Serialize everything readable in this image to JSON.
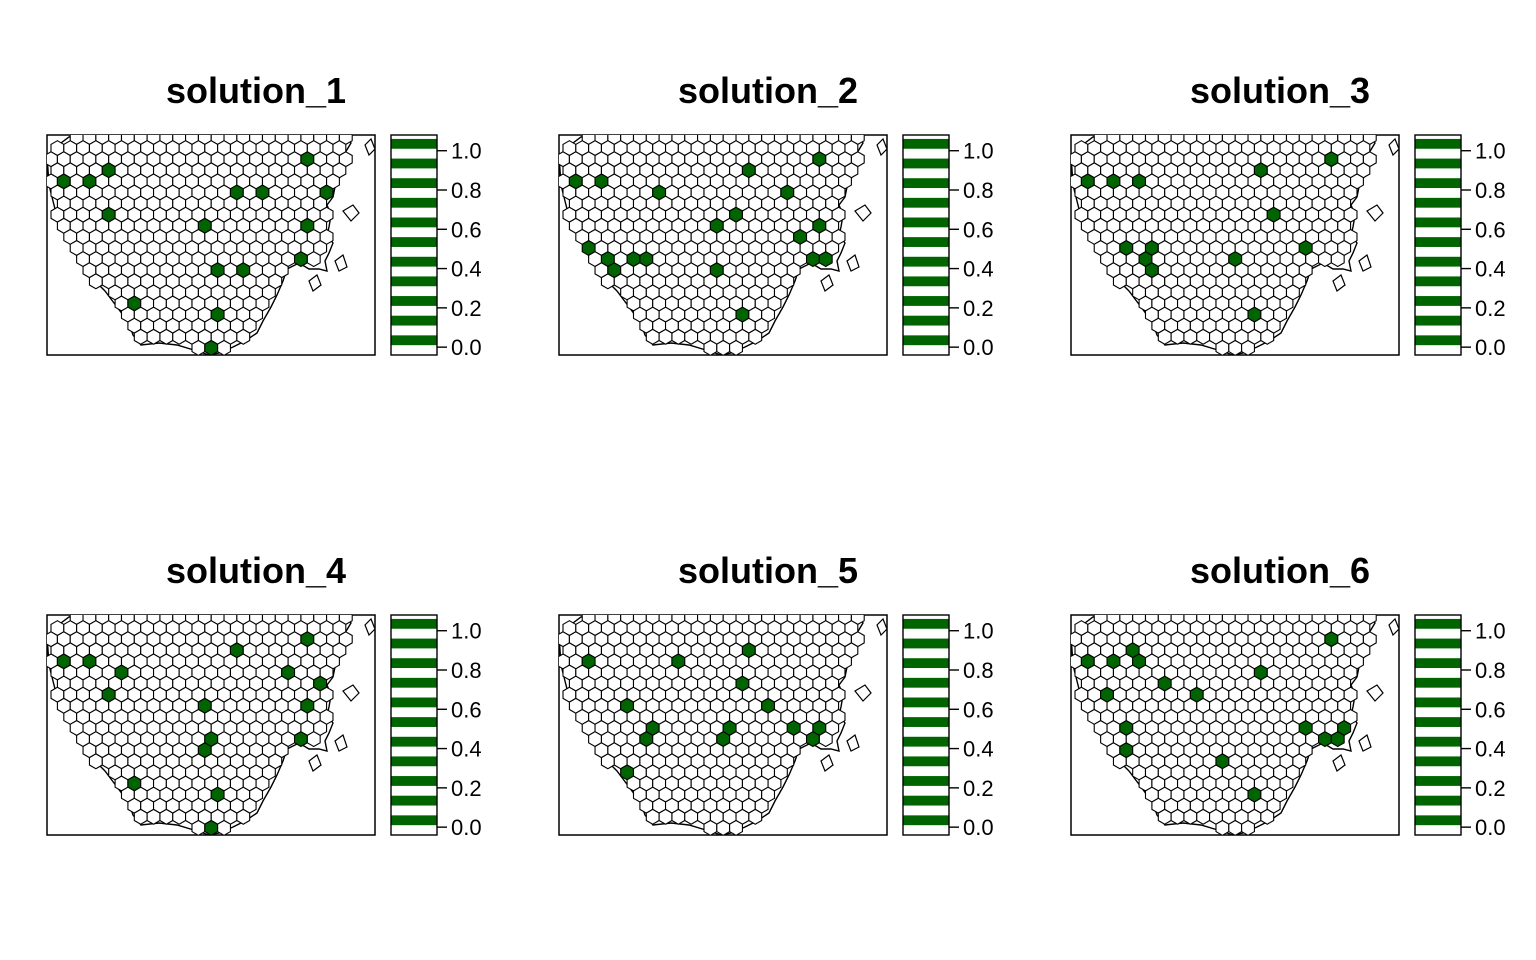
{
  "figure": {
    "background": "#ffffff"
  },
  "colors": {
    "selected": "#006400",
    "unselected": "#ffffff",
    "outline": "#000000"
  },
  "legend_ticks": [
    "0.0",
    "0.2",
    "0.4",
    "0.6",
    "0.8",
    "1.0"
  ],
  "chart_data": [
    {
      "type": "map",
      "title": "solution_1",
      "value_range": [
        0,
        1
      ],
      "legend": {
        "position": "right",
        "style": "color-bar",
        "ticks": [
          0,
          0.2,
          0.4,
          0.6,
          0.8,
          1.0
        ],
        "colors": [
          "#ffffff",
          "#006400"
        ]
      },
      "selected_units": [
        [
          2,
          20
        ],
        [
          2,
          35
        ],
        [
          3,
          4
        ],
        [
          4,
          1
        ],
        [
          4,
          3
        ],
        [
          5,
          14
        ],
        [
          5,
          16
        ],
        [
          5,
          21
        ],
        [
          7,
          4
        ],
        [
          8,
          12
        ],
        [
          8,
          20
        ],
        [
          8,
          24
        ],
        [
          8,
          30
        ],
        [
          8,
          31
        ],
        [
          10,
          26
        ],
        [
          10,
          28
        ],
        [
          11,
          19
        ],
        [
          11,
          30
        ],
        [
          12,
          13
        ],
        [
          12,
          15
        ],
        [
          13,
          34
        ],
        [
          13,
          23
        ],
        [
          14,
          27
        ],
        [
          15,
          6
        ],
        [
          16,
          13
        ],
        [
          17,
          2
        ],
        [
          19,
          12
        ],
        [
          20,
          18
        ],
        [
          22,
          18
        ],
        [
          23,
          19
        ],
        [
          26,
          11
        ],
        [
          27,
          16
        ],
        [
          29,
          16
        ],
        [
          30,
          19
        ],
        [
          28,
          9
        ],
        [
          29,
          20
        ]
      ]
    },
    {
      "type": "map",
      "title": "solution_2",
      "value_range": [
        0,
        1
      ],
      "legend": {
        "position": "right",
        "style": "color-bar",
        "ticks": [
          0,
          0.2,
          0.4,
          0.6,
          0.8,
          1.0
        ],
        "colors": [
          "#ffffff",
          "#006400"
        ]
      },
      "selected_units": [
        [
          2,
          20
        ],
        [
          2,
          34
        ],
        [
          3,
          14
        ],
        [
          3,
          26
        ],
        [
          4,
          1
        ],
        [
          4,
          3
        ],
        [
          5,
          7
        ],
        [
          5,
          17
        ],
        [
          7,
          13
        ],
        [
          8,
          12
        ],
        [
          8,
          20
        ],
        [
          9,
          18
        ],
        [
          10,
          2
        ],
        [
          11,
          3
        ],
        [
          11,
          5
        ],
        [
          11,
          6
        ],
        [
          12,
          4
        ],
        [
          12,
          12
        ],
        [
          11,
          19
        ],
        [
          11,
          20
        ],
        [
          12,
          31
        ],
        [
          12,
          32
        ],
        [
          13,
          22
        ],
        [
          13,
          23
        ],
        [
          15,
          31
        ],
        [
          16,
          14
        ],
        [
          16,
          24
        ],
        [
          26,
          9
        ],
        [
          26,
          15
        ],
        [
          26,
          19
        ],
        [
          27,
          20
        ],
        [
          29,
          16
        ],
        [
          30,
          19
        ],
        [
          31,
          15
        ],
        [
          32,
          11
        ],
        [
          28,
          21
        ]
      ]
    },
    {
      "type": "map",
      "title": "solution_3",
      "value_range": [
        0,
        1
      ],
      "legend": {
        "position": "right",
        "style": "color-bar",
        "ticks": [
          0,
          0.2,
          0.4,
          0.6,
          0.8,
          1.0
        ],
        "colors": [
          "#ffffff",
          "#006400"
        ]
      },
      "selected_units": [
        [
          2,
          20
        ],
        [
          2,
          34
        ],
        [
          2,
          27
        ],
        [
          3,
          14
        ],
        [
          4,
          1
        ],
        [
          4,
          3
        ],
        [
          4,
          5
        ],
        [
          6,
          29
        ],
        [
          7,
          15
        ],
        [
          8,
          28
        ],
        [
          8,
          30
        ],
        [
          9,
          31
        ],
        [
          10,
          4
        ],
        [
          10,
          6
        ],
        [
          10,
          18
        ],
        [
          11,
          5
        ],
        [
          11,
          12
        ],
        [
          12,
          6
        ],
        [
          12,
          19
        ],
        [
          12,
          20
        ],
        [
          12,
          21
        ],
        [
          13,
          28
        ],
        [
          13,
          30
        ],
        [
          13,
          32
        ],
        [
          14,
          31
        ],
        [
          14,
          3
        ],
        [
          16,
          14
        ],
        [
          16,
          20
        ],
        [
          17,
          4
        ],
        [
          22,
          18
        ],
        [
          24,
          19
        ],
        [
          25,
          20
        ],
        [
          26,
          17
        ],
        [
          30,
          11
        ],
        [
          32,
          14
        ],
        [
          31,
          19
        ]
      ]
    },
    {
      "type": "map",
      "title": "solution_4",
      "value_range": [
        0,
        1
      ],
      "legend": {
        "position": "right",
        "style": "color-bar",
        "ticks": [
          0,
          0.2,
          0.4,
          0.6,
          0.8,
          1.0
        ],
        "colors": [
          "#ffffff",
          "#006400"
        ]
      },
      "selected_units": [
        [
          2,
          20
        ],
        [
          2,
          27
        ],
        [
          3,
          29
        ],
        [
          3,
          35
        ],
        [
          3,
          14
        ],
        [
          4,
          1
        ],
        [
          4,
          3
        ],
        [
          5,
          5
        ],
        [
          5,
          18
        ],
        [
          6,
          21
        ],
        [
          7,
          4
        ],
        [
          8,
          12
        ],
        [
          8,
          20
        ],
        [
          8,
          30
        ],
        [
          8,
          31
        ],
        [
          10,
          26
        ],
        [
          10,
          28
        ],
        [
          11,
          12
        ],
        [
          11,
          19
        ],
        [
          12,
          12
        ],
        [
          12,
          21
        ],
        [
          13,
          34
        ],
        [
          13,
          23
        ],
        [
          14,
          27
        ],
        [
          15,
          6
        ],
        [
          16,
          13
        ],
        [
          17,
          2
        ],
        [
          19,
          12
        ],
        [
          20,
          18
        ],
        [
          22,
          18
        ],
        [
          23,
          19
        ],
        [
          26,
          11
        ],
        [
          27,
          16
        ],
        [
          29,
          16
        ],
        [
          30,
          19
        ],
        [
          28,
          9
        ]
      ]
    },
    {
      "type": "map",
      "title": "solution_5",
      "value_range": [
        0,
        1
      ],
      "legend": {
        "position": "right",
        "style": "color-bar",
        "ticks": [
          0,
          0.2,
          0.4,
          0.6,
          0.8,
          1.0
        ],
        "colors": [
          "#ffffff",
          "#006400"
        ]
      },
      "selected_units": [
        [
          2,
          27
        ],
        [
          2,
          35
        ],
        [
          2,
          37
        ],
        [
          3,
          14
        ],
        [
          4,
          2
        ],
        [
          4,
          9
        ],
        [
          5,
          26
        ],
        [
          6,
          14
        ],
        [
          7,
          30
        ],
        [
          8,
          5
        ],
        [
          8,
          16
        ],
        [
          8,
          27
        ],
        [
          9,
          28
        ],
        [
          10,
          7
        ],
        [
          10,
          13
        ],
        [
          10,
          18
        ],
        [
          10,
          20
        ],
        [
          10,
          22
        ],
        [
          11,
          6
        ],
        [
          11,
          12
        ],
        [
          11,
          19
        ],
        [
          11,
          21
        ],
        [
          12,
          23
        ],
        [
          12,
          31
        ],
        [
          14,
          5
        ],
        [
          15,
          29
        ],
        [
          17,
          18
        ],
        [
          19,
          19
        ],
        [
          21,
          20
        ],
        [
          23,
          18
        ],
        [
          25,
          20
        ],
        [
          28,
          10
        ],
        [
          28,
          14
        ],
        [
          28,
          16
        ],
        [
          30,
          19
        ],
        [
          32,
          20
        ]
      ]
    },
    {
      "type": "map",
      "title": "solution_6",
      "value_range": [
        0,
        1
      ],
      "legend": {
        "position": "right",
        "style": "color-bar",
        "ticks": [
          0,
          0.2,
          0.4,
          0.6,
          0.8,
          1.0
        ],
        "colors": [
          "#ffffff",
          "#006400"
        ]
      },
      "selected_units": [
        [
          2,
          20
        ],
        [
          2,
          28
        ],
        [
          2,
          30
        ],
        [
          3,
          4
        ],
        [
          4,
          1
        ],
        [
          4,
          3
        ],
        [
          4,
          5
        ],
        [
          5,
          14
        ],
        [
          6,
          7
        ],
        [
          7,
          2
        ],
        [
          7,
          9
        ],
        [
          8,
          29
        ],
        [
          8,
          31
        ],
        [
          9,
          32
        ],
        [
          10,
          4
        ],
        [
          10,
          18
        ],
        [
          10,
          21
        ],
        [
          11,
          19
        ],
        [
          11,
          20
        ],
        [
          12,
          4
        ],
        [
          12,
          21
        ],
        [
          12,
          23
        ],
        [
          13,
          11
        ],
        [
          13,
          28
        ],
        [
          13,
          29
        ],
        [
          14,
          3
        ],
        [
          16,
          14
        ],
        [
          16,
          20
        ],
        [
          19,
          18
        ],
        [
          21,
          18
        ],
        [
          22,
          20
        ],
        [
          24,
          19
        ],
        [
          26,
          10
        ],
        [
          26,
          13
        ],
        [
          28,
          16
        ],
        [
          27,
          19
        ]
      ]
    }
  ]
}
